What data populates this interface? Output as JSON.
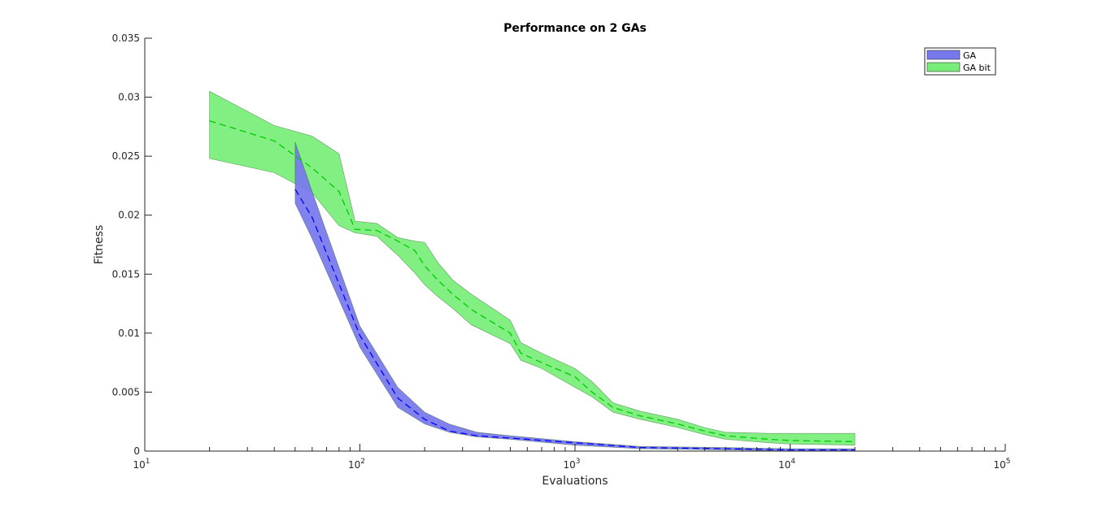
{
  "chart_data": {
    "type": "area",
    "title": "Performance on 2 GAs",
    "xlabel": "Evaluations",
    "ylabel": "Fitness",
    "xscale": "log",
    "xlim": [
      10,
      100000
    ],
    "ylim": [
      0,
      0.035
    ],
    "grid": false,
    "legend_position": "top-right",
    "x_tick_labels": [
      {
        "value": 10,
        "base": "10",
        "exp": "1"
      },
      {
        "value": 100,
        "base": "10",
        "exp": "2"
      },
      {
        "value": 1000,
        "base": "10",
        "exp": "3"
      },
      {
        "value": 10000,
        "base": "10",
        "exp": "4"
      },
      {
        "value": 100000,
        "base": "10",
        "exp": "5"
      }
    ],
    "y_ticks": [
      0,
      0.005,
      0.01,
      0.015,
      0.02,
      0.025,
      0.03,
      0.035
    ],
    "y_tick_labels": [
      "0",
      "0.005",
      "0.01",
      "0.015",
      "0.02",
      "0.025",
      "0.03",
      "0.035"
    ],
    "series": [
      {
        "name": "GA",
        "color": "#0000ff",
        "fill": "#7777ee",
        "x": [
          50,
          60,
          100,
          150,
          200,
          260,
          350,
          500,
          1000,
          2000,
          5000,
          10000,
          20000
        ],
        "mean": [
          0.0222,
          0.0198,
          0.0098,
          0.0045,
          0.0027,
          0.0017,
          0.0013,
          0.0011,
          0.0007,
          0.0003,
          0.0002,
          0.0001,
          0.0001
        ],
        "upper": [
          0.0262,
          0.022,
          0.0106,
          0.0054,
          0.0033,
          0.0023,
          0.0016,
          0.0013,
          0.0008,
          0.0004,
          0.0003,
          0.0002,
          0.0002
        ],
        "lower": [
          0.021,
          0.018,
          0.0088,
          0.0037,
          0.0023,
          0.0016,
          0.0012,
          0.001,
          0.0005,
          0.0002,
          0.0001,
          0.0,
          0.0
        ]
      },
      {
        "name": "GA bit",
        "color": "#00cc00",
        "fill": "#77ee77",
        "x": [
          20,
          40,
          60,
          80,
          95,
          120,
          150,
          180,
          200,
          230,
          270,
          330,
          500,
          560,
          700,
          1000,
          1200,
          1500,
          2000,
          3000,
          4000,
          5000,
          8000,
          10000,
          20000
        ],
        "mean": [
          0.028,
          0.0263,
          0.024,
          0.022,
          0.0188,
          0.0187,
          0.0178,
          0.017,
          0.0157,
          0.0145,
          0.0133,
          0.012,
          0.01,
          0.0083,
          0.0075,
          0.0063,
          0.005,
          0.0037,
          0.003,
          0.0023,
          0.0017,
          0.0013,
          0.001,
          0.0009,
          0.0008
        ],
        "upper": [
          0.0305,
          0.0276,
          0.0267,
          0.0252,
          0.0195,
          0.0193,
          0.0181,
          0.0178,
          0.0177,
          0.016,
          0.0145,
          0.0133,
          0.0111,
          0.0092,
          0.0083,
          0.007,
          0.0059,
          0.0041,
          0.0034,
          0.0027,
          0.002,
          0.0016,
          0.0015,
          0.0015,
          0.0015
        ],
        "lower": [
          0.0248,
          0.0236,
          0.0219,
          0.0191,
          0.0185,
          0.0182,
          0.0166,
          0.0151,
          0.0141,
          0.0131,
          0.0121,
          0.0107,
          0.0091,
          0.0077,
          0.007,
          0.0054,
          0.0046,
          0.0033,
          0.0027,
          0.002,
          0.0014,
          0.001,
          0.0007,
          0.0006,
          0.0005
        ]
      }
    ]
  }
}
